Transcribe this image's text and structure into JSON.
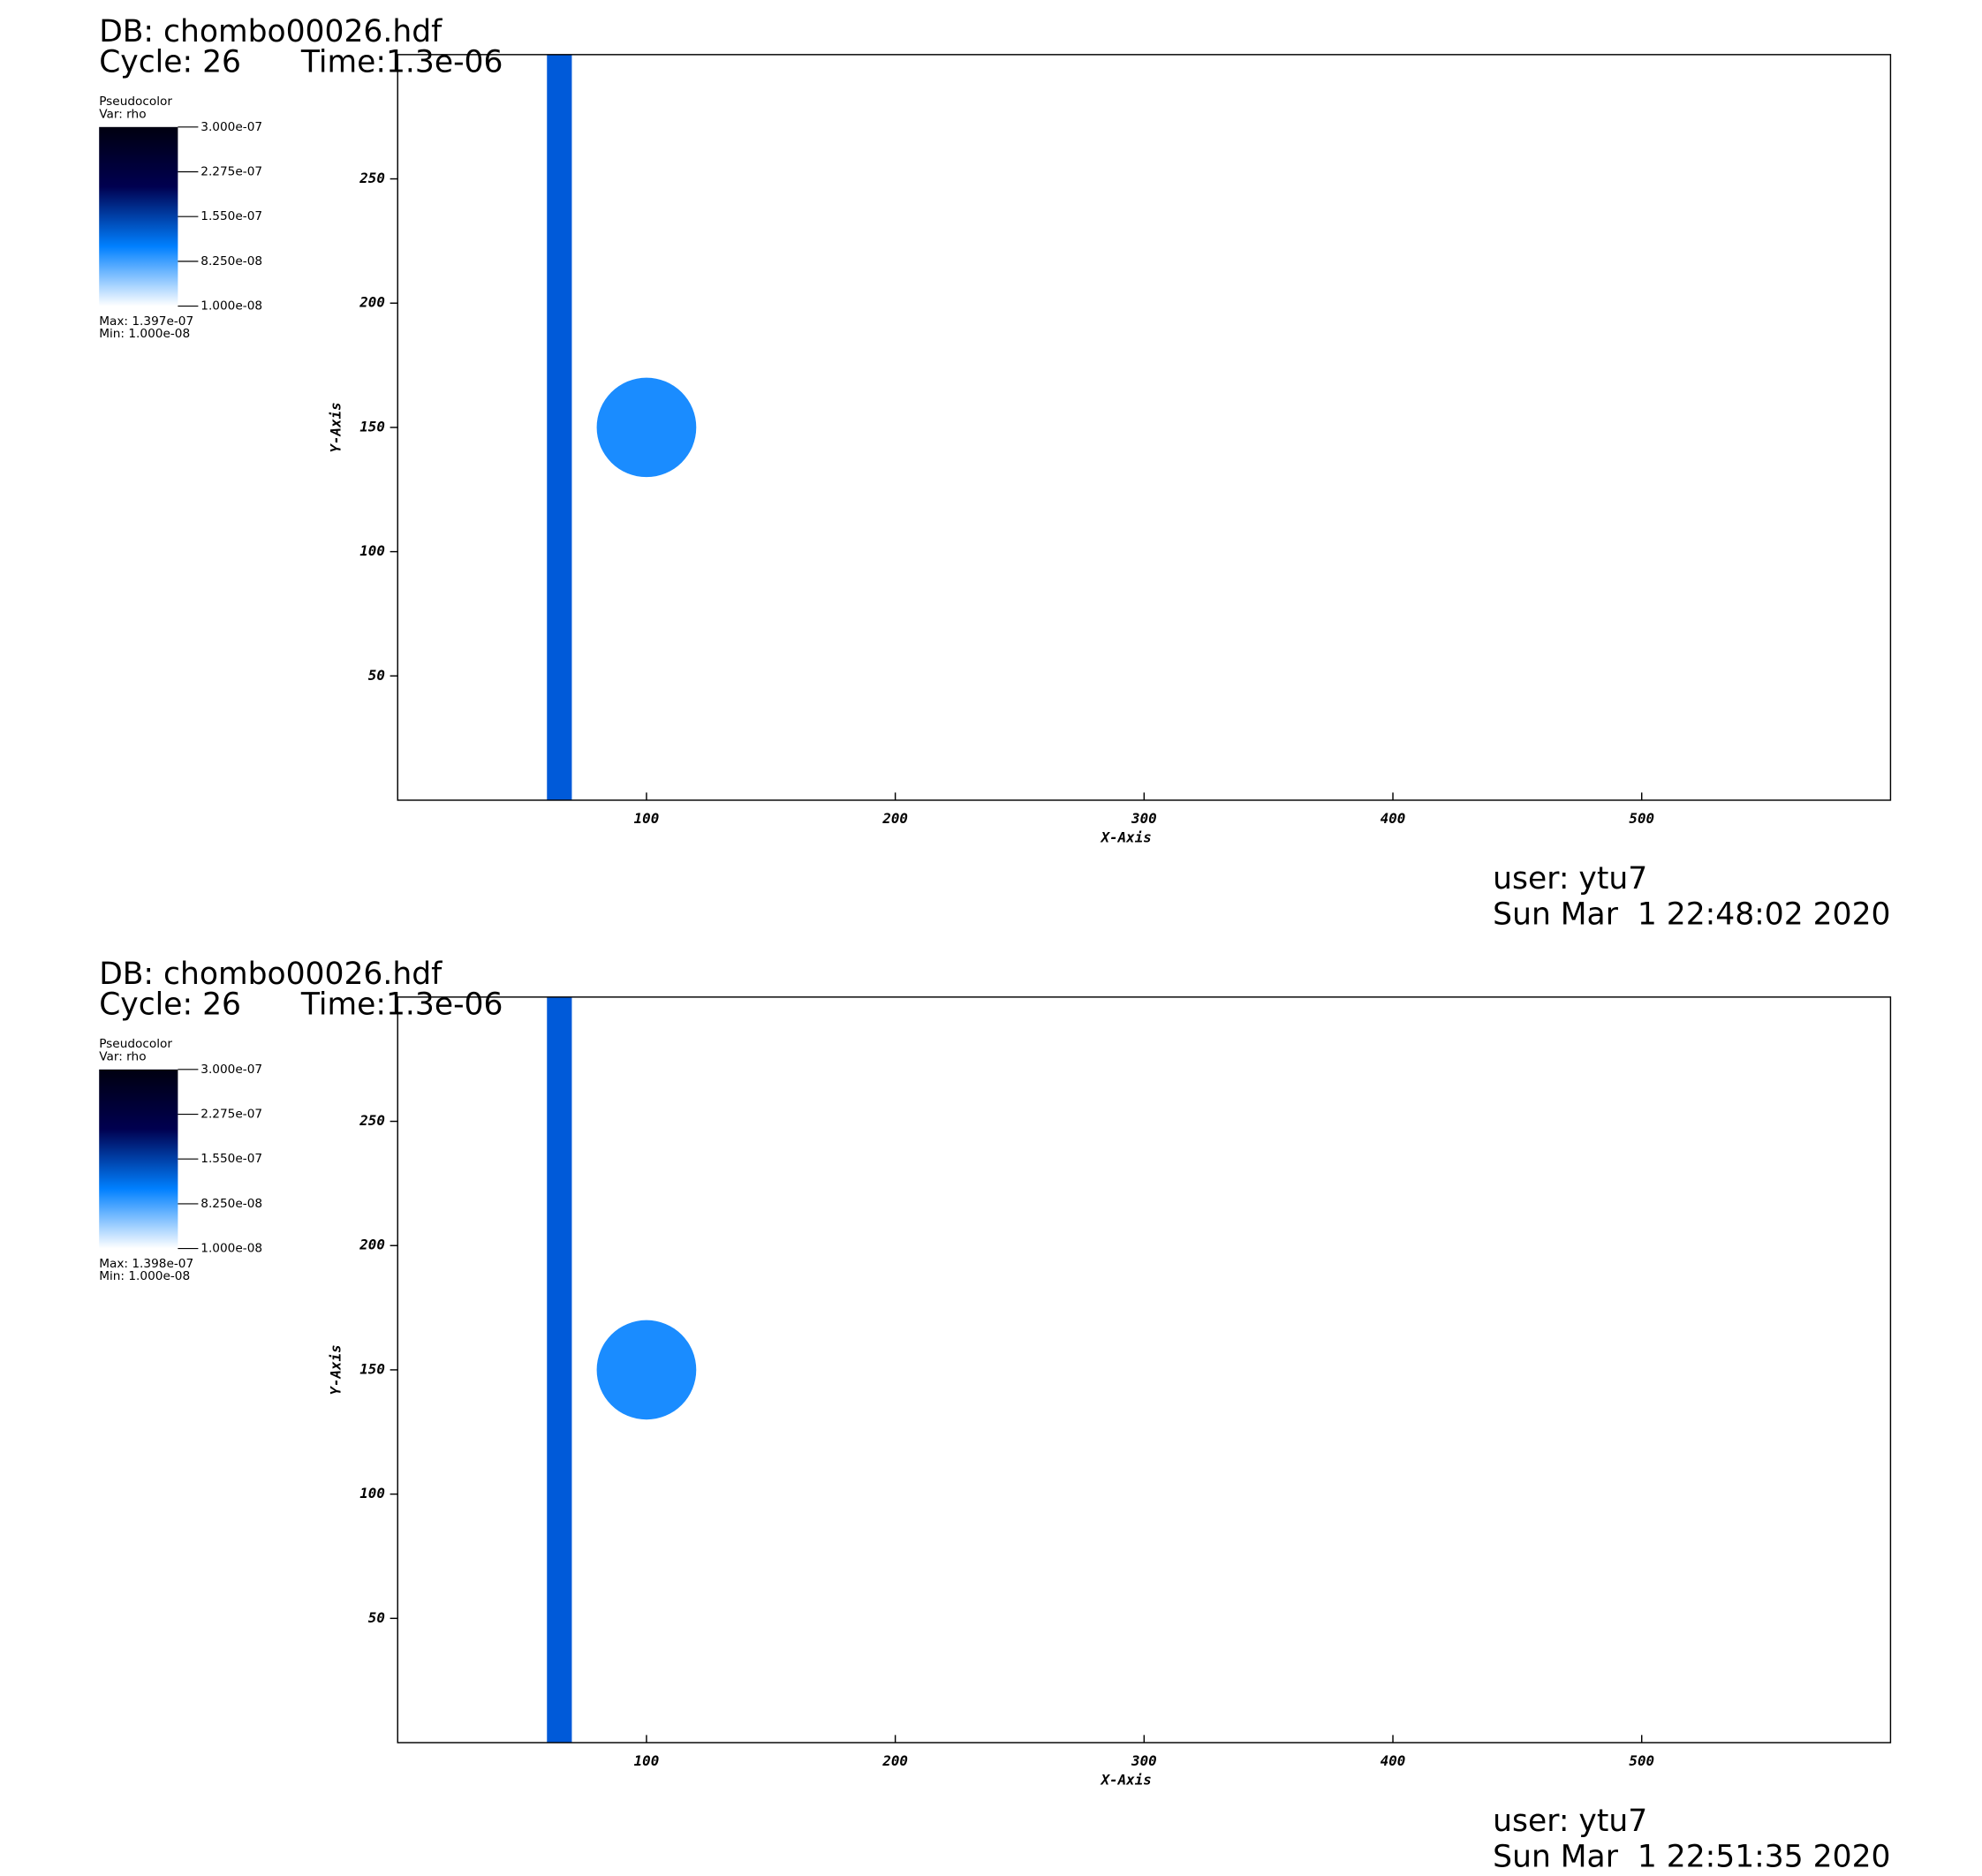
{
  "chart_data": [
    {
      "type": "pseudocolor",
      "db": "DB: chombo00026.hdf",
      "cycle": "Cycle: 26",
      "time": "Time:1.3e-06",
      "xlabel": "X-Axis",
      "ylabel": "Y-Axis",
      "xlim": [
        0,
        600
      ],
      "ylim": [
        0,
        300
      ],
      "xticks": [
        100,
        200,
        300,
        400,
        500
      ],
      "yticks": [
        50,
        100,
        150,
        200,
        250
      ],
      "band": {
        "x": [
          60,
          70
        ],
        "color": "#005ad9"
      },
      "circle": {
        "center": [
          100,
          150
        ],
        "radius": 20,
        "color": "#1a8cff"
      },
      "colorbar": {
        "title": "Pseudocolor",
        "var": "Var: rho",
        "lim": [
          1e-08,
          3e-07
        ],
        "colors": [
          "#ffffff",
          "#0080ff",
          "#000050",
          "#000010"
        ],
        "ticks": [
          {
            "value": 3e-07,
            "label": "3.000e-07"
          },
          {
            "value": 2.275e-07,
            "label": "2.275e-07"
          },
          {
            "value": 1.55e-07,
            "label": "1.550e-07"
          },
          {
            "value": 8.25e-08,
            "label": "8.250e-08"
          },
          {
            "value": 1e-08,
            "label": "1.000e-08"
          }
        ],
        "max": "Max:  1.397e-07",
        "min": "Min:  1.000e-08"
      },
      "user": "user: ytu7",
      "date": "Sun Mar  1 22:48:02 2020"
    },
    {
      "type": "pseudocolor",
      "db": "DB: chombo00026.hdf",
      "cycle": "Cycle: 26",
      "time": "Time:1.3e-06",
      "xlabel": "X-Axis",
      "ylabel": "Y-Axis",
      "xlim": [
        0,
        600
      ],
      "ylim": [
        0,
        300
      ],
      "xticks": [
        100,
        200,
        300,
        400,
        500
      ],
      "yticks": [
        50,
        100,
        150,
        200,
        250
      ],
      "band": {
        "x": [
          60,
          70
        ],
        "color": "#005ad9"
      },
      "circle": {
        "center": [
          100,
          150
        ],
        "radius": 20,
        "color": "#1a8cff"
      },
      "colorbar": {
        "title": "Pseudocolor",
        "var": "Var: rho",
        "lim": [
          1e-08,
          3e-07
        ],
        "colors": [
          "#ffffff",
          "#0080ff",
          "#000050",
          "#000010"
        ],
        "ticks": [
          {
            "value": 3e-07,
            "label": "3.000e-07"
          },
          {
            "value": 2.275e-07,
            "label": "2.275e-07"
          },
          {
            "value": 1.55e-07,
            "label": "1.550e-07"
          },
          {
            "value": 8.25e-08,
            "label": "8.250e-08"
          },
          {
            "value": 1e-08,
            "label": "1.000e-08"
          }
        ],
        "max": "Max:  1.398e-07",
        "min": "Min:  1.000e-08"
      },
      "user": "user: ytu7",
      "date": "Sun Mar  1 22:51:35 2020"
    }
  ]
}
